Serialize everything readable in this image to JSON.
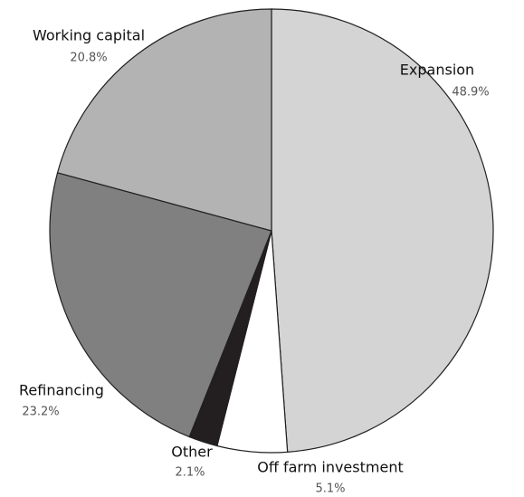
{
  "chart_data": {
    "type": "pie",
    "categories": [
      "Expansion",
      "Off farm investment",
      "Other",
      "Refinancing",
      "Working capital"
    ],
    "values": [
      48.9,
      5.1,
      2.1,
      23.2,
      20.8
    ],
    "value_labels": [
      "48.9%",
      "5.1%",
      "2.1%",
      "23.2%",
      "20.8%"
    ],
    "colors": [
      "#d4d4d4",
      "#ffffff",
      "#231f20",
      "#808080",
      "#b3b3b3"
    ]
  }
}
